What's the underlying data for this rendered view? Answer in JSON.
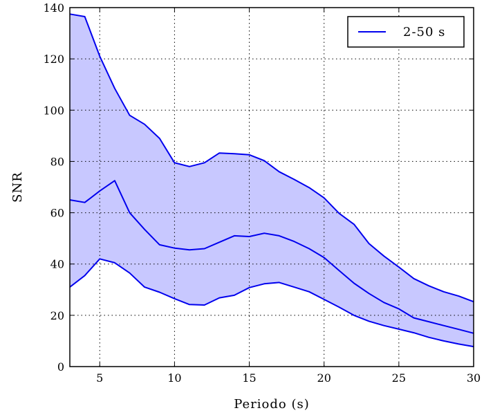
{
  "chart_data": {
    "type": "area",
    "xlabel": "Periodo (s)",
    "ylabel": "SNR",
    "xlim": [
      3,
      30
    ],
    "ylim": [
      0,
      140
    ],
    "xticks": [
      5,
      10,
      15,
      20,
      25,
      30
    ],
    "yticks": [
      0,
      20,
      40,
      60,
      80,
      100,
      120,
      140
    ],
    "grid": true,
    "legend": {
      "placement": "top-right",
      "entries": [
        "2-50 s"
      ]
    },
    "colors": {
      "line": "#0000ee",
      "fill": "#c8c8ff"
    },
    "x": [
      3,
      4,
      5,
      6,
      7,
      8,
      9,
      10,
      11,
      12,
      13,
      14,
      15,
      16,
      17,
      18,
      19,
      20,
      21,
      22,
      23,
      24,
      25,
      26,
      27,
      28,
      29,
      30
    ],
    "series": [
      {
        "name": "2-50 s",
        "role": "mean",
        "values": [
          65,
          64,
          68.5,
          72.5,
          60,
          53.5,
          47.5,
          46.2,
          45.5,
          46,
          48.5,
          51,
          50.7,
          52,
          51,
          48.8,
          46,
          42.5,
          37.5,
          32.5,
          28.5,
          25,
          22.5,
          19,
          17.5,
          16,
          14.5,
          13
        ]
      },
      {
        "role": "upper",
        "values": [
          137.5,
          136.5,
          121,
          108.5,
          98,
          94.5,
          89,
          79.5,
          78,
          79.5,
          83.3,
          83,
          82.6,
          80.3,
          76,
          73,
          69.8,
          65.8,
          59.8,
          55.5,
          48,
          43.1,
          38.8,
          34.3,
          31.5,
          29.2,
          27.5,
          25.3
        ]
      },
      {
        "role": "lower",
        "values": [
          31,
          35.5,
          42,
          40.5,
          36.5,
          31,
          29,
          26.5,
          24.2,
          24,
          26.8,
          27.8,
          30.8,
          32.3,
          32.8,
          31,
          29.2,
          26.2,
          23.2,
          20,
          17.7,
          16,
          14.6,
          13.2,
          11.4,
          10,
          8.8,
          7.8
        ]
      }
    ]
  }
}
